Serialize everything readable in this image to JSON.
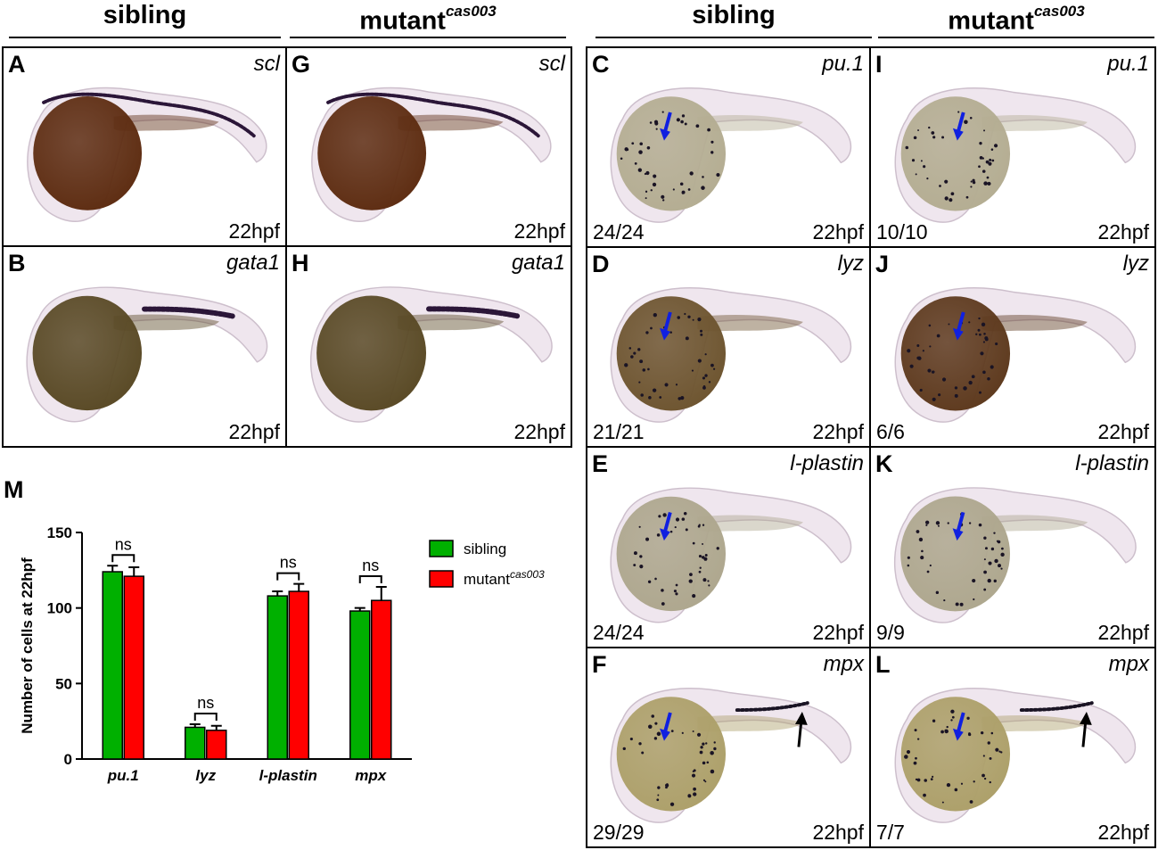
{
  "headers": {
    "left_sibling": "sibling",
    "left_mutant": "mutant",
    "left_mutant_sup": "cas003",
    "right_sibling": "sibling",
    "right_mutant": "mutant",
    "right_mutant_sup": "cas003"
  },
  "panels": [
    {
      "id": "A",
      "gene": "scl",
      "stage": "22hpf",
      "count": "",
      "yolk": "#5e2d12",
      "stain": "scl"
    },
    {
      "id": "G",
      "gene": "scl",
      "stage": "22hpf",
      "count": "",
      "yolk": "#5e2d12",
      "stain": "scl"
    },
    {
      "id": "B",
      "gene": "gata1",
      "stage": "22hpf",
      "count": "",
      "yolk": "#5a4a26",
      "stain": "gata1"
    },
    {
      "id": "H",
      "gene": "gata1",
      "stage": "22hpf",
      "count": "",
      "yolk": "#5a4a26",
      "stain": "gata1"
    },
    {
      "id": "C",
      "gene": "pu.1",
      "stage": "22hpf",
      "count": "24/24",
      "yolk": "#b4ad92",
      "stain": "dots"
    },
    {
      "id": "I",
      "gene": "pu.1",
      "stage": "22hpf",
      "count": "10/10",
      "yolk": "#b4ad92",
      "stain": "dots"
    },
    {
      "id": "D",
      "gene": "lyz",
      "stage": "22hpf",
      "count": "21/21",
      "yolk": "#6e5530",
      "stain": "dots"
    },
    {
      "id": "J",
      "gene": "lyz",
      "stage": "22hpf",
      "count": "6/6",
      "yolk": "#5e3a1e",
      "stain": "dots"
    },
    {
      "id": "E",
      "gene": "l-plastin",
      "stage": "22hpf",
      "count": "24/24",
      "yolk": "#aea78e",
      "stain": "dots"
    },
    {
      "id": "K",
      "gene": "l-plastin",
      "stage": "22hpf",
      "count": "9/9",
      "yolk": "#aea78e",
      "stain": "dots"
    },
    {
      "id": "F",
      "gene": "mpx",
      "stage": "22hpf",
      "count": "29/29",
      "yolk": "#ada06a",
      "stain": "mpx"
    },
    {
      "id": "L",
      "gene": "mpx",
      "stage": "22hpf",
      "count": "7/7",
      "yolk": "#ada06a",
      "stain": "mpx"
    }
  ],
  "panel_m_label": "M",
  "chart_data": {
    "type": "bar",
    "ylabel": "Number of cells at 22hpf",
    "ylim": [
      0,
      150
    ],
    "yticks": [
      0,
      50,
      100,
      150
    ],
    "categories": [
      "pu.1",
      "lyz",
      "l-plastin",
      "mpx"
    ],
    "series": [
      {
        "name": "sibling",
        "color": "#00b000",
        "values": [
          124,
          21,
          108,
          98
        ],
        "errors": [
          4,
          2,
          3,
          2
        ]
      },
      {
        "name": "mutant",
        "name_sup": "cas003",
        "color": "#ff0000",
        "values": [
          121,
          19,
          111,
          105
        ],
        "errors": [
          6,
          3,
          5,
          9
        ]
      }
    ],
    "significance": [
      "ns",
      "ns",
      "ns",
      "ns"
    ],
    "legend_position": "right"
  }
}
